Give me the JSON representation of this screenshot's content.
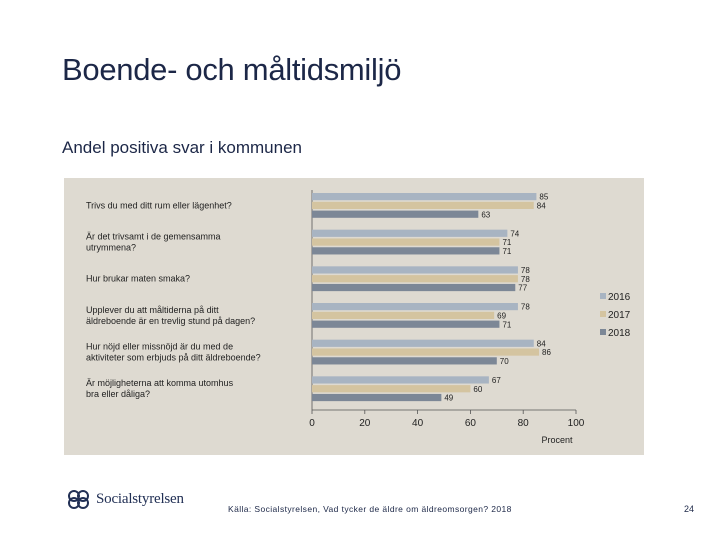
{
  "header": {
    "title": "Boende- och måltidsmiljö",
    "subtitle": "Andel positiva svar i kommunen"
  },
  "chart_data": {
    "type": "bar",
    "orientation": "horizontal",
    "categories": [
      "Trivs du med ditt rum eller lägenhet?",
      "Är det trivsamt i de gemensamma utrymmena?",
      "Hur brukar maten smaka?",
      "Upplever du att måltiderna på ditt äldreboende är en trevlig stund på dagen?",
      "Hur nöjd eller missnöjd är du med de aktiviteter som erbjuds på ditt äldreboende?",
      "Är möjligheterna att komma utomhus bra eller dåliga?"
    ],
    "category_lines": [
      [
        "Trivs du med ditt rum eller lägenhet?"
      ],
      [
        "Är det trivsamt i de gemensamma",
        "utrymmena?"
      ],
      [
        "Hur brukar maten smaka?"
      ],
      [
        "Upplever du att måltiderna på ditt",
        "äldreboende är en trevlig stund på dagen?"
      ],
      [
        "Hur nöjd eller missnöjd är du med de",
        "aktiviteter som erbjuds på ditt äldreboende?"
      ],
      [
        "Är möjligheterna att komma utomhus",
        "bra eller dåliga?"
      ]
    ],
    "series": [
      {
        "name": "2016",
        "color": "#a8b4c2",
        "values": [
          85,
          74,
          78,
          78,
          84,
          67
        ]
      },
      {
        "name": "2017",
        "color": "#d4c4a0",
        "values": [
          84,
          71,
          78,
          69,
          86,
          60
        ]
      },
      {
        "name": "2018",
        "color": "#7c8796",
        "values": [
          63,
          71,
          77,
          71,
          70,
          49
        ]
      }
    ],
    "x_ticks": [
      0,
      20,
      40,
      60,
      80,
      100
    ],
    "xlim": [
      0,
      100
    ],
    "xlabel": "Procent",
    "legend_position": "right",
    "grid": false
  },
  "footer": {
    "logo_text": "Socialstyrelsen",
    "source": "Källa: Socialstyrelsen, Vad tycker de äldre om äldreomsorgen? 2018",
    "page": "24"
  }
}
